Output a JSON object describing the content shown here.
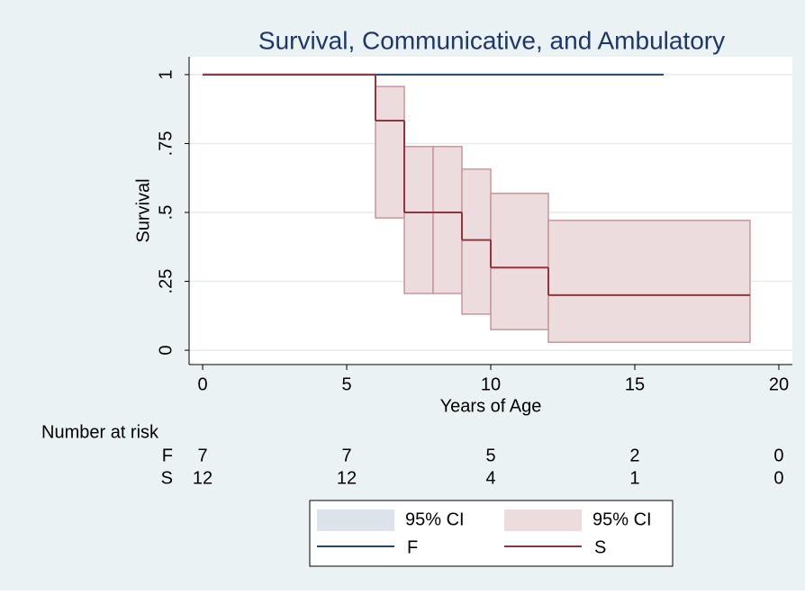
{
  "chart_data": {
    "type": "step",
    "title": "Survival, Communicative, and Ambulatory",
    "x_label": "Years of Age",
    "y_label": "Survival",
    "xlim": [
      -0.47,
      20.47
    ],
    "ylim": [
      -0.052,
      1.065
    ],
    "xticks": [
      0,
      5,
      10,
      15,
      20
    ],
    "yticks": [
      0,
      {
        "value": 0.25,
        "label": ".25"
      },
      {
        "value": 0.5,
        "label": ".5"
      },
      {
        "value": 0.75,
        "label": ".75"
      },
      1
    ],
    "grid": true,
    "legend": "bottom",
    "series": [
      {
        "name": "F",
        "color": "#1a476f",
        "x": [
          0,
          16
        ],
        "values": [
          1,
          1
        ],
        "ci_name": "95% CI",
        "ci_color": "#dde3ea",
        "ci_lower": [
          1,
          1
        ],
        "ci_upper": [
          1,
          1
        ]
      },
      {
        "name": "S",
        "color": "#90353b",
        "x": [
          0,
          6,
          7,
          8,
          9,
          10,
          12,
          19
        ],
        "values": [
          1,
          0.833,
          0.5,
          0.5,
          0.4,
          0.3,
          0.2,
          0.2
        ],
        "ci_name": "95% CI",
        "ci_color": "#eddcde",
        "ci_lower": [
          1,
          0.48,
          0.206,
          0.206,
          0.131,
          0.075,
          0.029,
          0.029
        ],
        "ci_upper": [
          1,
          0.957,
          0.739,
          0.739,
          0.657,
          0.569,
          0.471,
          0.471
        ]
      }
    ],
    "risk_table": {
      "title": "Number at risk",
      "times": [
        0,
        5,
        10,
        15,
        20
      ],
      "rows": [
        {
          "label": "F",
          "values": [
            7,
            7,
            5,
            2,
            0
          ]
        },
        {
          "label": "S",
          "values": [
            12,
            12,
            4,
            1,
            0
          ]
        }
      ]
    }
  }
}
